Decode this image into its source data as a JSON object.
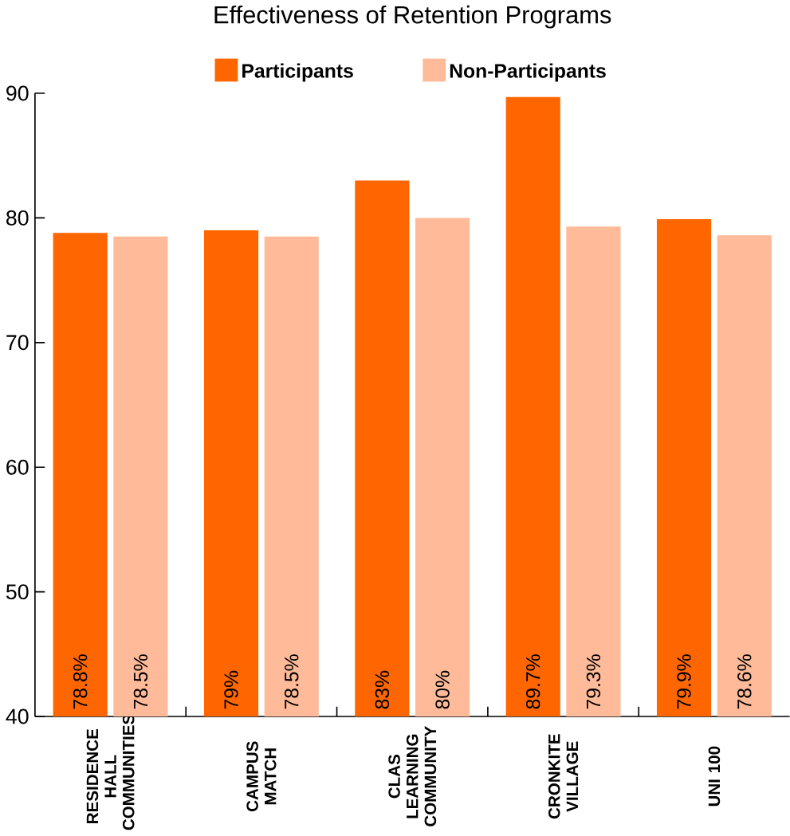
{
  "chart_data": {
    "type": "bar",
    "title": "Effectiveness of Retention Programs",
    "categories": [
      "RESIDENCE HALL COMMUNITIES",
      "CAMPUS MATCH",
      "CLAS LEARNING COMMUNITY",
      "CRONKITE VILLAGE",
      "UNI 100"
    ],
    "series": [
      {
        "name": "Participants",
        "color": "#ff6600",
        "values": [
          78.8,
          79,
          83,
          89.7,
          79.9
        ],
        "value_labels": [
          "78.8%",
          "79%",
          "83%",
          "89.7%",
          "79.9%"
        ]
      },
      {
        "name": "Non-Participants",
        "color": "#ffbb99",
        "values": [
          78.5,
          78.5,
          80,
          79.3,
          78.6
        ],
        "value_labels": [
          "78.5%",
          "78.5%",
          "80%",
          "79.3%",
          "78.6%"
        ]
      }
    ],
    "ylim": [
      40,
      90
    ],
    "yticks": [
      40,
      50,
      60,
      70,
      80,
      90
    ],
    "legend": "top",
    "grid": false
  }
}
